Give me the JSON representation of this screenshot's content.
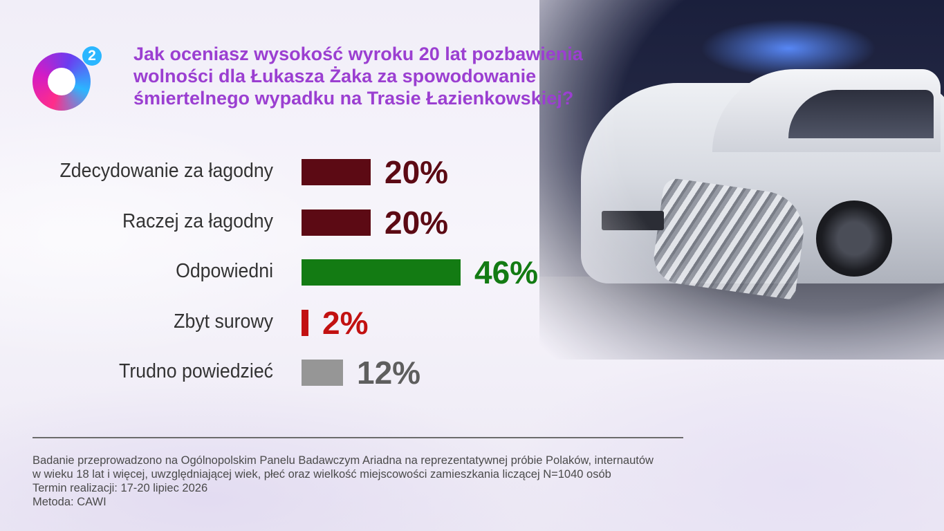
{
  "brand": {
    "logo_sup": "2"
  },
  "title_lines": [
    "Jak oceniasz wysokość wyroku 20 lat pozbawienia",
    "wolności dla Łukasza Żaka za spowodowanie",
    "śmiertelnego wypadku na Trasie Łazienkowskiej?"
  ],
  "chart_data": {
    "type": "bar",
    "orientation": "horizontal",
    "categories": [
      "Zdecydowanie za łagodny",
      "Raczej za łagodny",
      "Odpowiedni",
      "Zbyt surowy",
      "Trudno powiedzieć"
    ],
    "values": [
      20,
      20,
      46,
      2,
      12
    ],
    "value_labels": [
      "20%",
      "20%",
      "46%",
      "2%",
      "12%"
    ],
    "colors": [
      "#5c0a14",
      "#5c0a14",
      "#137b13",
      "#c21111",
      "#969696"
    ],
    "label_colors": [
      "#5c0a14",
      "#5c0a14",
      "#137b13",
      "#c21111",
      "#5e5e5e"
    ],
    "unit": "%",
    "xlim": [
      0,
      100
    ],
    "grid": false,
    "legend": false
  },
  "footer_lines": [
    "Badanie przeprowadzono na Ogólnopolskim Panelu Badawczym Ariadna na reprezentatywnej próbie Polaków, internautów",
    "w wieku 18 lat i więcej, uwzględniającej wiek, płeć oraz wielkość miejscowości zamieszkania liczącej N=1040 osób",
    "Termin realizacji: 17-20 lipiec 2026",
    "Metoda: CAWI"
  ]
}
